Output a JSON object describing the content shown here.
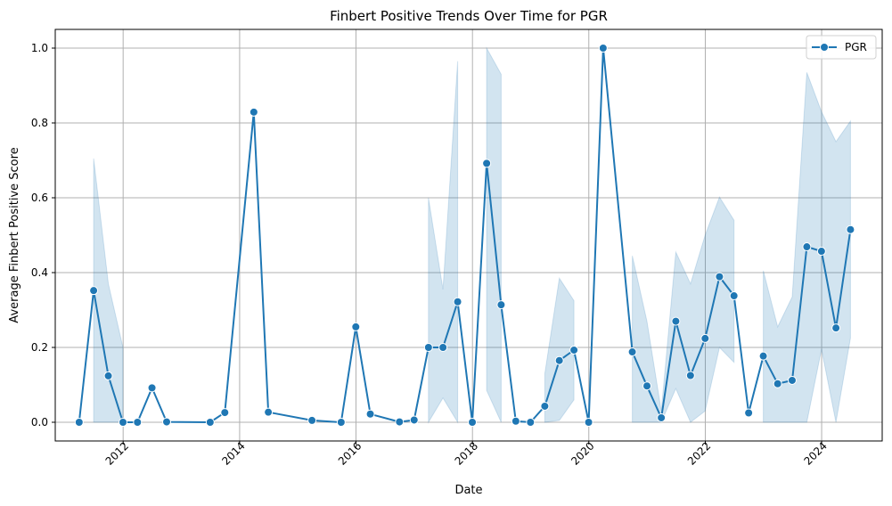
{
  "chart_data": {
    "type": "line",
    "title": "Finbert Positive Trends Over Time for PGR",
    "xlabel": "Date",
    "ylabel": "Average Finbert Positive Score",
    "xlim": [
      "2010-11-01",
      "2025-01-15"
    ],
    "ylim": [
      -0.05,
      1.05
    ],
    "x_ticks": [
      "2012-01-01",
      "2014-01-01",
      "2016-01-01",
      "2018-01-01",
      "2020-01-01",
      "2022-01-01",
      "2024-01-01"
    ],
    "x_tick_labels": [
      "2012",
      "2014",
      "2016",
      "2018",
      "2020",
      "2022",
      "2024"
    ],
    "y_ticks": [
      0.0,
      0.2,
      0.4,
      0.6,
      0.8,
      1.0
    ],
    "y_tick_labels": [
      "0.0",
      "0.2",
      "0.4",
      "0.6",
      "0.8",
      "1.0"
    ],
    "grid": true,
    "legend_position": "top-right",
    "colors": {
      "line": "#1f77b4",
      "band": "#1f77b4",
      "grid": "#b0b0b0"
    },
    "series": [
      {
        "name": "PGR",
        "marker": "circle",
        "points": [
          {
            "x": "2011-03-31",
            "y": 0.0
          },
          {
            "x": "2011-06-30",
            "y": 0.352,
            "lo": 0.0,
            "hi": 0.705
          },
          {
            "x": "2011-09-30",
            "y": 0.124,
            "lo": 0.0,
            "hi": 0.37
          },
          {
            "x": "2011-12-31",
            "y": 0.0,
            "lo": 0.0,
            "hi": 0.2
          },
          {
            "x": "2012-03-31",
            "y": 0.0
          },
          {
            "x": "2012-06-30",
            "y": 0.092,
            "lo": 0.0,
            "hi": 0.265
          },
          {
            "x": "2012-09-30",
            "y": 0.001
          },
          {
            "x": "2013-06-30",
            "y": 0.0
          },
          {
            "x": "2013-09-30",
            "y": 0.026
          },
          {
            "x": "2014-03-31",
            "y": 0.829
          },
          {
            "x": "2014-06-30",
            "y": 0.027,
            "lo": 0.005,
            "hi": 0.057
          },
          {
            "x": "2015-03-31",
            "y": 0.005
          },
          {
            "x": "2015-09-30",
            "y": 0.0
          },
          {
            "x": "2015-12-31",
            "y": 0.255,
            "lo": 0.0,
            "hi": 0.51
          },
          {
            "x": "2016-03-31",
            "y": 0.022
          },
          {
            "x": "2016-09-30",
            "y": 0.001
          },
          {
            "x": "2016-12-31",
            "y": 0.006
          },
          {
            "x": "2017-03-31",
            "y": 0.2,
            "lo": 0.0,
            "hi": 0.6
          },
          {
            "x": "2017-06-30",
            "y": 0.2,
            "lo": 0.065,
            "hi": 0.355
          },
          {
            "x": "2017-09-30",
            "y": 0.322,
            "lo": 0.0,
            "hi": 0.965
          },
          {
            "x": "2017-12-31",
            "y": 0.0
          },
          {
            "x": "2018-03-31",
            "y": 0.692,
            "lo": 0.085,
            "hi": 1.0
          },
          {
            "x": "2018-06-30",
            "y": 0.314,
            "lo": 0.0,
            "hi": 0.93
          },
          {
            "x": "2018-09-30",
            "y": 0.003
          },
          {
            "x": "2018-12-31",
            "y": 0.0
          },
          {
            "x": "2019-03-31",
            "y": 0.043,
            "lo": 0.0,
            "hi": 0.13
          },
          {
            "x": "2019-06-30",
            "y": 0.165,
            "lo": 0.005,
            "hi": 0.385
          },
          {
            "x": "2019-09-30",
            "y": 0.193,
            "lo": 0.06,
            "hi": 0.325
          },
          {
            "x": "2019-12-31",
            "y": 0.0
          },
          {
            "x": "2020-03-31",
            "y": 1.0
          },
          {
            "x": "2020-09-30",
            "y": 0.188,
            "lo": 0.0,
            "hi": 0.445
          },
          {
            "x": "2020-12-31",
            "y": 0.097,
            "lo": 0.0,
            "hi": 0.27
          },
          {
            "x": "2021-03-31",
            "y": 0.012,
            "lo": 0.0,
            "hi": 0.03
          },
          {
            "x": "2021-06-30",
            "y": 0.27,
            "lo": 0.09,
            "hi": 0.455
          },
          {
            "x": "2021-09-30",
            "y": 0.125,
            "lo": 0.0,
            "hi": 0.37
          },
          {
            "x": "2021-12-31",
            "y": 0.224,
            "lo": 0.03,
            "hi": 0.5
          },
          {
            "x": "2022-03-31",
            "y": 0.389,
            "lo": 0.2,
            "hi": 0.602
          },
          {
            "x": "2022-06-30",
            "y": 0.338,
            "lo": 0.16,
            "hi": 0.54
          },
          {
            "x": "2022-09-30",
            "y": 0.025
          },
          {
            "x": "2022-12-31",
            "y": 0.177,
            "lo": 0.0,
            "hi": 0.405
          },
          {
            "x": "2023-03-31",
            "y": 0.103,
            "lo": 0.0,
            "hi": 0.255
          },
          {
            "x": "2023-06-30",
            "y": 0.112,
            "lo": 0.0,
            "hi": 0.335
          },
          {
            "x": "2023-09-30",
            "y": 0.469,
            "lo": 0.0,
            "hi": 0.935
          },
          {
            "x": "2023-12-31",
            "y": 0.457,
            "lo": 0.195,
            "hi": 0.83
          },
          {
            "x": "2024-03-31",
            "y": 0.252,
            "lo": 0.0,
            "hi": 0.75
          },
          {
            "x": "2024-06-30",
            "y": 0.515,
            "lo": 0.225,
            "hi": 0.805
          }
        ]
      }
    ]
  }
}
